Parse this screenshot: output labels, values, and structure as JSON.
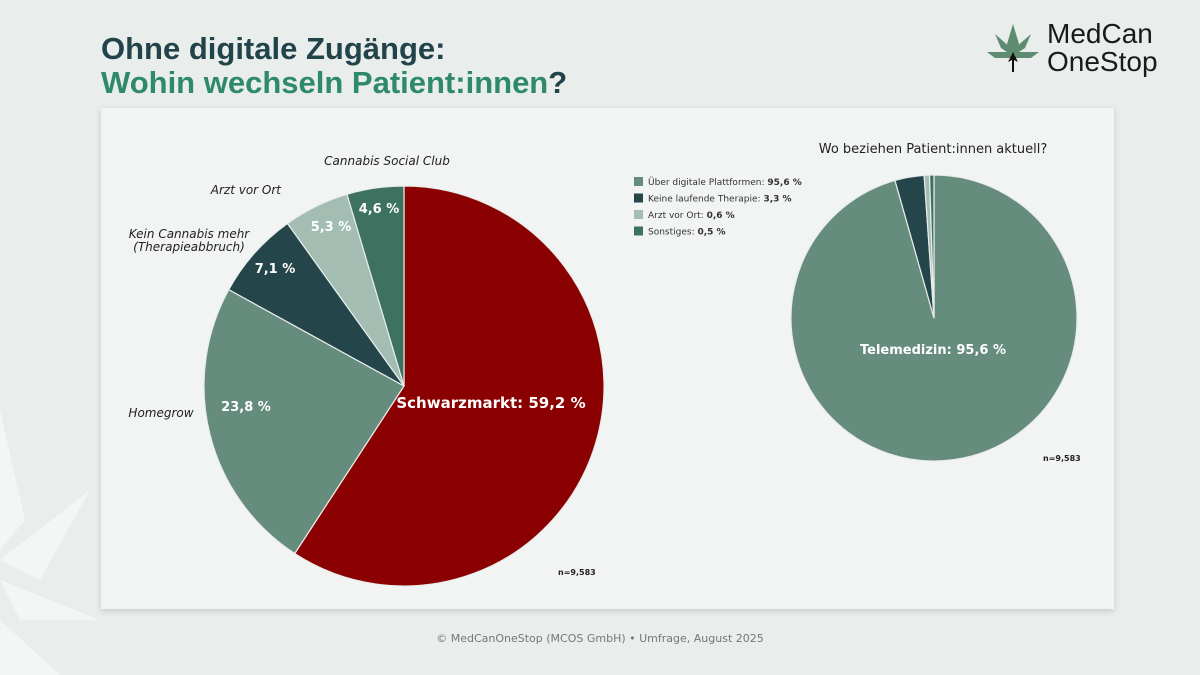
{
  "header": {
    "title_line1": "Ohne digitale Zugänge:",
    "title_line2": "Wohin wechseln Patient:innen",
    "title_q": "?"
  },
  "logo": {
    "line1": "MedCan",
    "line2": "OneStop"
  },
  "footer": "© MedCanOneStop (MCOS GmbH) • Umfrage, August 2025",
  "chart_data": [
    {
      "type": "pie",
      "title": "",
      "n_label": "n=9,583",
      "slices": [
        {
          "category": "Schwarzmarkt",
          "value": 59.2,
          "label": "Schwarzmarkt: 59,2 %",
          "color": "#8b0000"
        },
        {
          "category": "Homegrow",
          "value": 23.8,
          "label": "23,8 %",
          "color": "#658c7c"
        },
        {
          "category": "Kein Cannabis mehr (Therapieabbruch)",
          "category_lines": [
            "Kein Cannabis mehr",
            "(Therapieabbruch)"
          ],
          "value": 7.1,
          "label": "7,1 %",
          "color": "#24464a"
        },
        {
          "category": "Arzt vor Ort",
          "value": 5.3,
          "label": "5,3 %",
          "color": "#a3bdb3"
        },
        {
          "category": "Cannabis Social Club",
          "value": 4.6,
          "label": "4,6 %",
          "color": "#3e7260"
        }
      ]
    },
    {
      "type": "pie",
      "title": "Wo beziehen Patient:innen aktuell?",
      "n_label": "n=9,583",
      "legend": "top-left",
      "slices": [
        {
          "category": "Über digitale Plattformen",
          "value": 95.6,
          "legend_label": "Über digitale Plattformen: ",
          "legend_value": "95,6 %",
          "label": "Telemedizin: 95,6 %",
          "color": "#658c7c"
        },
        {
          "category": "Keine laufende Therapie",
          "value": 3.3,
          "legend_label": "Keine laufende Therapie: ",
          "legend_value": "3,3 %",
          "color": "#24464a"
        },
        {
          "category": "Arzt vor Ort",
          "value": 0.6,
          "legend_label": "Arzt vor Ort: ",
          "legend_value": "0,6 %",
          "color": "#a3bdb3"
        },
        {
          "category": "Sonstiges",
          "value": 0.5,
          "legend_label": "Sonstiges: ",
          "legend_value": "0,5 %",
          "color": "#3e7260"
        }
      ]
    }
  ]
}
